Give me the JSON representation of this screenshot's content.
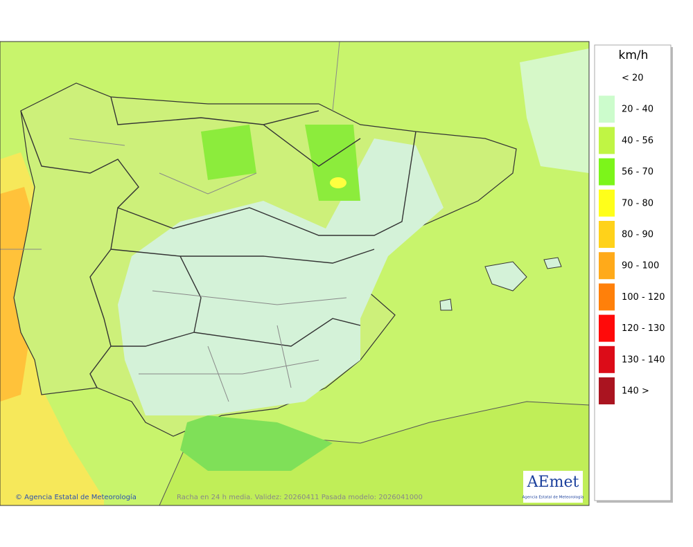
{
  "map": {
    "legend": {
      "unit": "km/h",
      "items": [
        {
          "label": "< 20"
        },
        {
          "label": "20 - 40",
          "color": "#ccfccc"
        },
        {
          "label": "40 - 56",
          "color": "#c0f544"
        },
        {
          "label": "56 - 70",
          "color": "#7cf51a"
        },
        {
          "label": "70 - 80",
          "color": "#ffff1a"
        },
        {
          "label": "80 - 90",
          "color": "#ffd21a"
        },
        {
          "label": "90 - 100",
          "color": "#ffaa1a"
        },
        {
          "label": "100 - 120",
          "color": "#ff800a"
        },
        {
          "label": "120 - 130",
          "color": "#ff0a0a"
        },
        {
          "label": "130 - 140",
          "color": "#dc0c18"
        },
        {
          "label": "140 >",
          "color": "#aa1420"
        }
      ]
    },
    "footer": {
      "credit": "© Agencia Estatal de Meteorología",
      "caption": "Racha en 24 h media. Validez: 20260411 Pasada modelo: 2026041000"
    },
    "logo": {
      "name": "AEmet",
      "subtitle": "Agencia Estatal de Meteorología"
    }
  }
}
